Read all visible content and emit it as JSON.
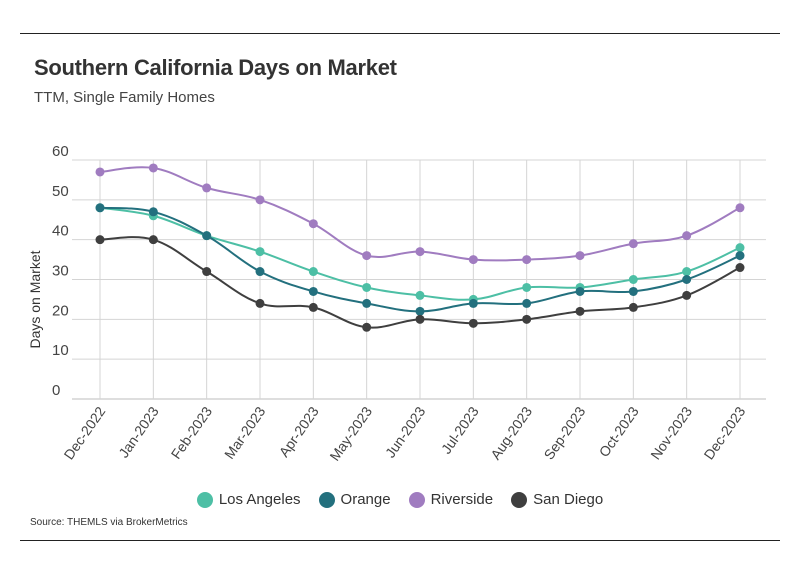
{
  "header": {
    "title": "Southern California Days on Market",
    "subtitle": "TTM, Single Family Homes"
  },
  "footer": {
    "source": "Source:  THEMLS via BrokerMetrics"
  },
  "chart_data": {
    "type": "line",
    "title": "Southern California Days on Market",
    "subtitle": "TTM, Single Family Homes",
    "xlabel": "",
    "ylabel": "Days on Market",
    "ylim": [
      0,
      60
    ],
    "yticks": [
      0,
      10,
      20,
      30,
      40,
      50,
      60
    ],
    "grid": true,
    "legend_position": "bottom",
    "categories": [
      "Dec-2022",
      "Jan-2023",
      "Feb-2023",
      "Mar-2023",
      "Apr-2023",
      "May-2023",
      "Jun-2023",
      "Jul-2023",
      "Aug-2023",
      "Sep-2023",
      "Oct-2023",
      "Nov-2023",
      "Dec-2023"
    ],
    "series": [
      {
        "name": "Los Angeles",
        "color": "#4dbfa5",
        "values": [
          48,
          46,
          41,
          37,
          32,
          28,
          26,
          25,
          28,
          28,
          30,
          32,
          38
        ]
      },
      {
        "name": "Orange",
        "color": "#23707e",
        "values": [
          48,
          47,
          41,
          32,
          27,
          24,
          22,
          24,
          24,
          27,
          27,
          30,
          36
        ]
      },
      {
        "name": "Riverside",
        "color": "#a07cc0",
        "values": [
          57,
          58,
          53,
          50,
          44,
          36,
          37,
          35,
          35,
          36,
          39,
          41,
          48
        ]
      },
      {
        "name": "San Diego",
        "color": "#3f3f3f",
        "values": [
          40,
          40,
          32,
          24,
          23,
          18,
          20,
          19,
          20,
          22,
          23,
          26,
          33
        ]
      }
    ]
  }
}
